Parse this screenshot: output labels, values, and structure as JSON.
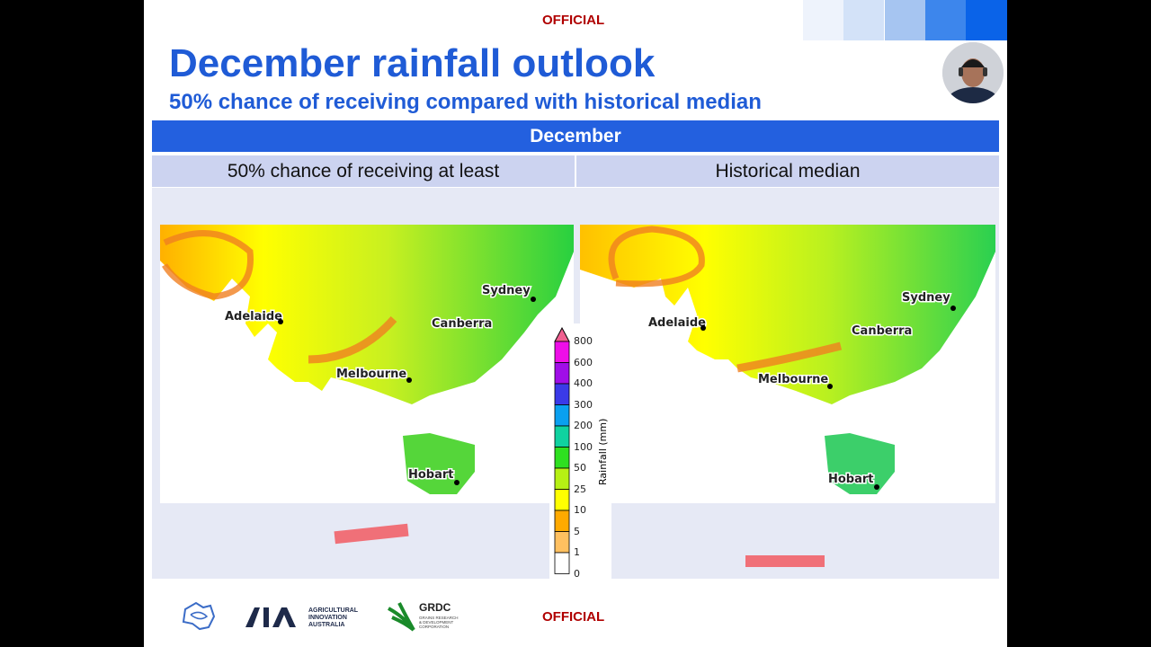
{
  "header": {
    "classification": "OFFICIAL",
    "title": "December rainfall outlook",
    "subtitle": "50% chance of receiving compared with historical median",
    "brand_squares": [
      "#eef3fc",
      "#d3e2f8",
      "#a6c5f1",
      "#3d86ec",
      "#0a63e8"
    ]
  },
  "table": {
    "month": "December",
    "columns": [
      "50% chance of receiving at least",
      "Historical median"
    ]
  },
  "maps": {
    "cities": [
      "Sydney",
      "Canberra",
      "Adelaide",
      "Melbourne",
      "Hobart"
    ]
  },
  "colorbar": {
    "label": "Rainfall (mm)",
    "ticks": [
      "800",
      "600",
      "400",
      "300",
      "200",
      "100",
      "50",
      "25",
      "10",
      "5",
      "1",
      "0"
    ],
    "colors": [
      "#ee0ee8",
      "#a00ee8",
      "#3a3ae8",
      "#0aa0f0",
      "#10d2a0",
      "#2ee020",
      "#b6f014",
      "#ffff00",
      "#ffaa00",
      "#ffc060",
      "#ffffff"
    ],
    "overflow_color": "#f06090"
  },
  "footer": {
    "classification": "OFFICIAL",
    "logos": [
      "AIA AGRICULTURAL INNOVATION AUSTRALIA",
      "GRDC GRAINS RESEARCH & DEVELOPMENT CORPORATION"
    ]
  }
}
